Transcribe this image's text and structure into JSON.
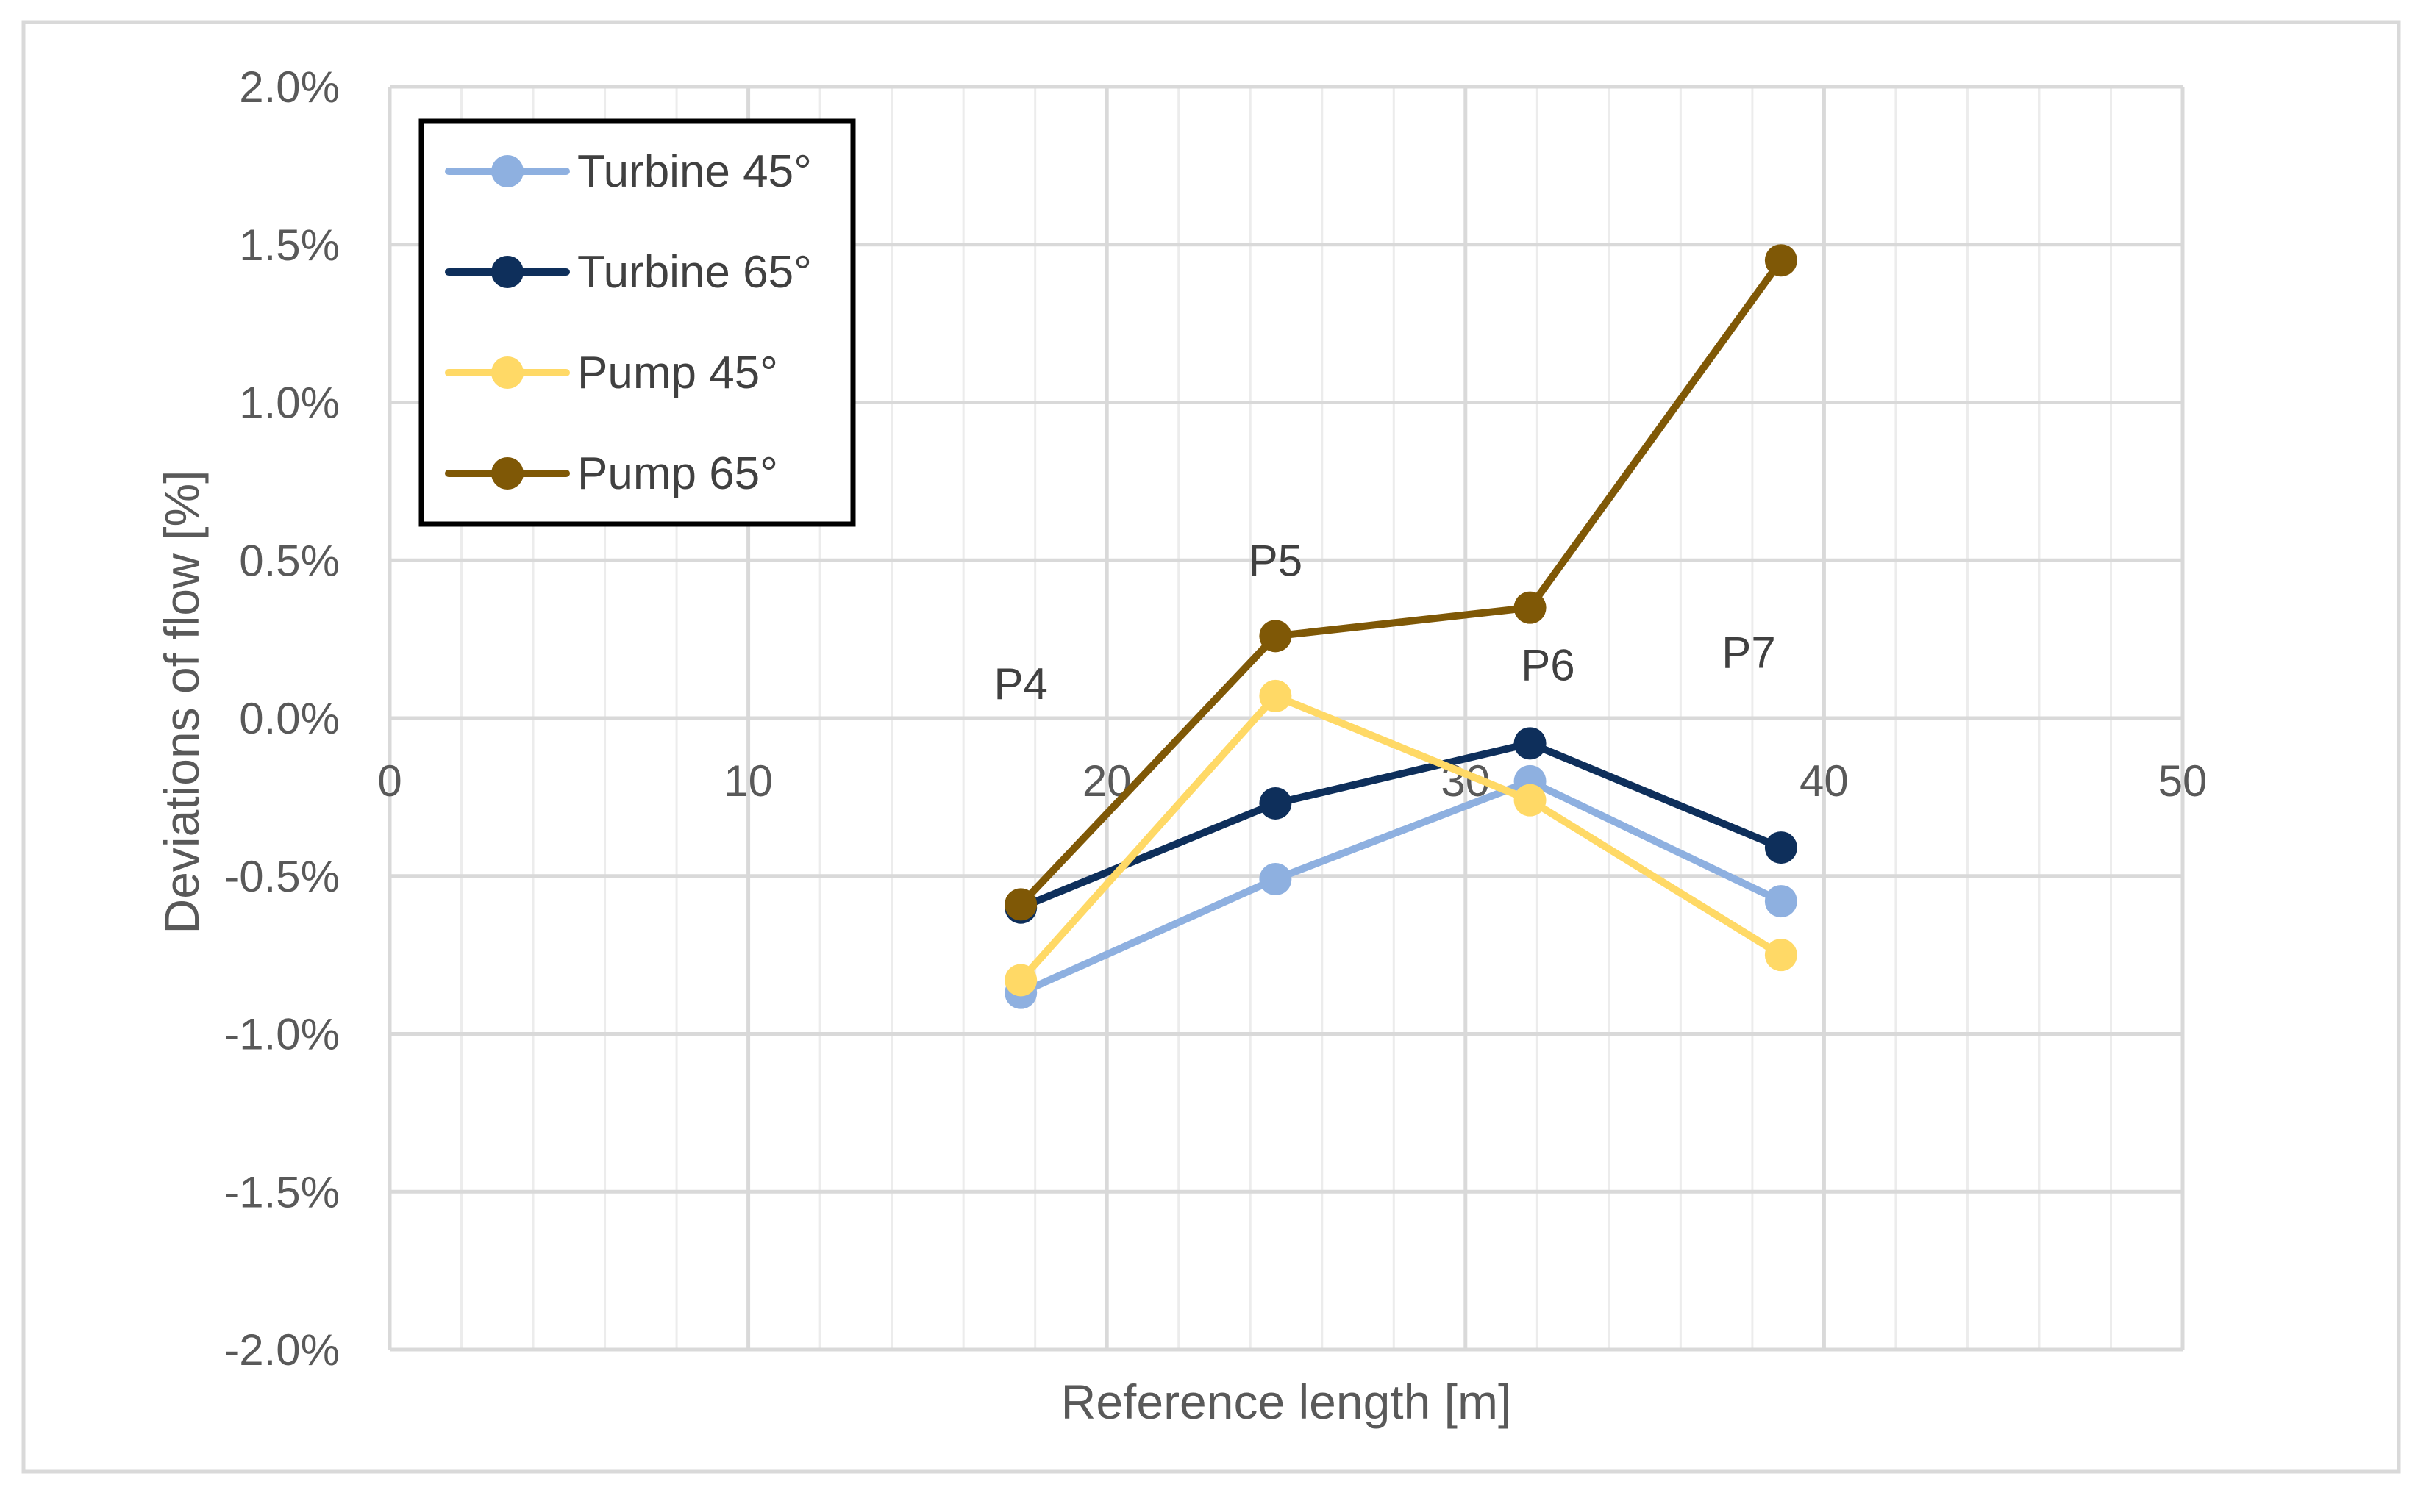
{
  "chart_data": {
    "type": "line",
    "title": "",
    "xlabel": "Reference length [m]",
    "ylabel": "Deviations of flow [%]",
    "xlim": [
      0,
      50
    ],
    "ylim": [
      -2.0,
      2.0
    ],
    "x_ticks": [
      0,
      10,
      20,
      30,
      40,
      50
    ],
    "x_tick_labels": [
      "0",
      "10",
      "20",
      "30",
      "40",
      "50"
    ],
    "y_ticks": [
      2.0,
      1.5,
      1.0,
      0.5,
      0.0,
      -0.5,
      -1.0,
      -1.5,
      -2.0
    ],
    "y_tick_labels": [
      "2.0%",
      "1.5%",
      "1.0%",
      "0.5%",
      "0.0%",
      "-0.5%",
      "-1.0%",
      "-1.5%",
      "-2.0%"
    ],
    "grid": true,
    "legend_position": "top-left",
    "x": [
      17.6,
      24.7,
      31.8,
      38.8
    ],
    "series": [
      {
        "name": "Turbine 45°",
        "color": "#8EB0E0",
        "values": [
          -0.87,
          -0.51,
          -0.2,
          -0.58
        ]
      },
      {
        "name": "Turbine 65°",
        "color": "#0E2F5B",
        "values": [
          -0.6,
          -0.27,
          -0.08,
          -0.41
        ]
      },
      {
        "name": "Pump 45°",
        "color": "#FFD966",
        "values": [
          -0.83,
          0.07,
          -0.26,
          -0.75
        ]
      },
      {
        "name": "Pump 65°",
        "color": "#7F5806",
        "values": [
          -0.59,
          0.26,
          0.35,
          1.45
        ]
      }
    ],
    "annotations": [
      {
        "text": "P4",
        "x": 17.6,
        "y": 0.06
      },
      {
        "text": "P5",
        "x": 24.7,
        "y": 0.45
      },
      {
        "text": "P6",
        "x": 32.3,
        "y": 0.12
      },
      {
        "text": "P7",
        "x": 37.9,
        "y": 0.16
      }
    ]
  }
}
